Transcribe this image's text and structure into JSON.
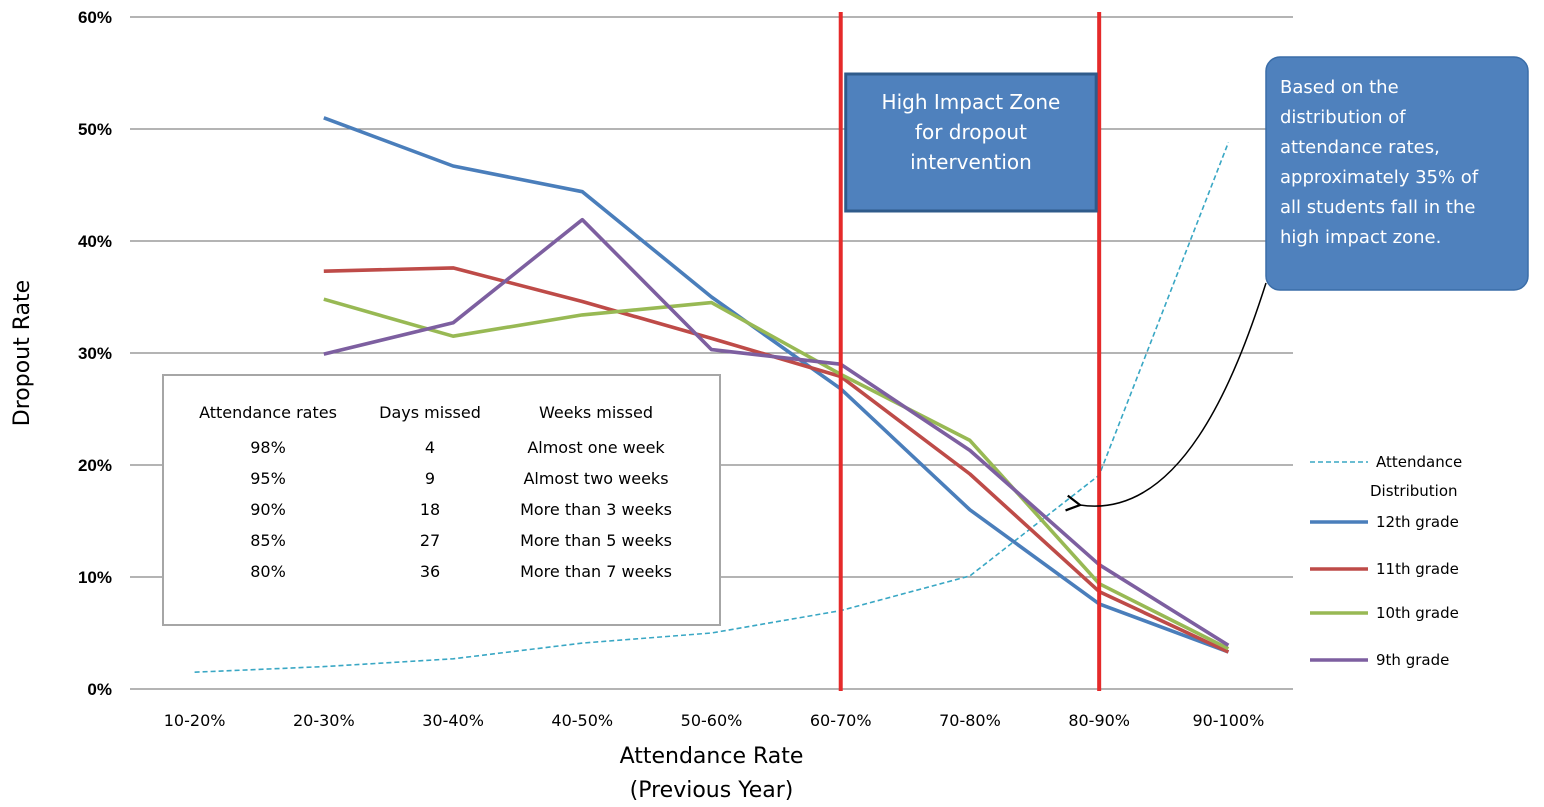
{
  "chart_data": {
    "type": "line",
    "categories": [
      "10-20%",
      "20-30%",
      "30-40%",
      "40-50%",
      "50-60%",
      "60-70%",
      "70-80%",
      "80-90%",
      "90-100%"
    ],
    "series": [
      {
        "name": "Attendance Distribution",
        "color": "#39a7c4",
        "style": "dashed",
        "values": [
          1.5,
          2.0,
          2.7,
          4.1,
          5.0,
          7.0,
          10.1,
          19.1,
          48.8
        ]
      },
      {
        "name": "12th grade",
        "color": "#4a7ebb",
        "style": "solid",
        "values": [
          null,
          51.0,
          46.7,
          44.4,
          35.0,
          26.8,
          16.0,
          7.6,
          3.3
        ]
      },
      {
        "name": "11th grade",
        "color": "#be4b48",
        "style": "solid",
        "values": [
          null,
          37.3,
          37.6,
          34.6,
          31.3,
          27.9,
          19.2,
          8.7,
          3.3
        ]
      },
      {
        "name": "10th grade",
        "color": "#98b954",
        "style": "solid",
        "values": [
          null,
          34.8,
          31.5,
          33.4,
          34.5,
          28.1,
          22.2,
          9.4,
          3.6
        ]
      },
      {
        "name": "9th grade",
        "color": "#7d5fa0",
        "style": "solid",
        "values": [
          null,
          29.9,
          32.7,
          41.9,
          30.3,
          29.0,
          21.3,
          11.1,
          3.9
        ]
      }
    ],
    "legend_order": [
      "Attendance Distribution",
      "12th grade",
      "11th grade",
      "10th grade",
      "9th grade"
    ],
    "legend_labels": [
      {
        "line1": "Attendance",
        "line2": "Distribution"
      },
      {
        "line1": "12th grade"
      },
      {
        "line1": "11th grade"
      },
      {
        "line1": "10th grade"
      },
      {
        "line1": "9th grade"
      }
    ],
    "legend_placement": "right",
    "xlabel_line1": "Attendance Rate",
    "xlabel_line2": "(Previous Year)",
    "ylabel": "Dropout Rate",
    "ylim": [
      0,
      60
    ],
    "y_ticks": [
      "0%",
      "10%",
      "20%",
      "30%",
      "40%",
      "50%",
      "60%"
    ],
    "grid": true,
    "highlight_lines_at": [
      "60-70%",
      "80-90%"
    ],
    "zone_label": {
      "line1": "High Impact Zone",
      "line2": "for dropout",
      "line3": "intervention"
    },
    "callout_lines": [
      "Based on the",
      "distribution of",
      "attendance rates,",
      "approximately 35% of",
      "all students fall in the",
      "high impact zone."
    ],
    "inset_table": {
      "headers": [
        "Attendance rates",
        "Days missed",
        "Weeks missed"
      ],
      "rows": [
        [
          "98%",
          "4",
          "Almost one week"
        ],
        [
          "95%",
          "9",
          "Almost two weeks"
        ],
        [
          "90%",
          "18",
          "More than 3 weeks"
        ],
        [
          "85%",
          "27",
          "More than 5 weeks"
        ],
        [
          "80%",
          "36",
          "More than 7 weeks"
        ]
      ]
    },
    "colors": {
      "highlight": "#e52a2a",
      "zone_box": "#4f81bd",
      "callout_box": "#4f81bd",
      "grid": "#868686"
    }
  }
}
